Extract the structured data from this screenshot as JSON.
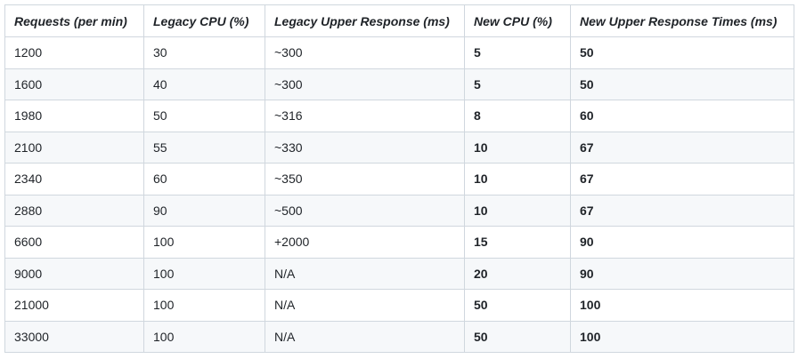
{
  "table": {
    "headers": [
      "Requests (per min)",
      "Legacy CPU (%)",
      "Legacy Upper Response (ms)",
      "New CPU (%)",
      "New Upper Response Times (ms)"
    ],
    "rows": [
      [
        "1200",
        "30",
        "~300",
        "5",
        "50"
      ],
      [
        "1600",
        "40",
        "~300",
        "5",
        "50"
      ],
      [
        "1980",
        "50",
        "~316",
        "8",
        "60"
      ],
      [
        "2100",
        "55",
        "~330",
        "10",
        "67"
      ],
      [
        "2340",
        "60",
        "~350",
        "10",
        "67"
      ],
      [
        "2880",
        "90",
        "~500",
        "10",
        "67"
      ],
      [
        "6600",
        "100",
        "+2000",
        "15",
        "90"
      ],
      [
        "9000",
        "100",
        "N/A",
        "20",
        "90"
      ],
      [
        "21000",
        "100",
        "N/A",
        "50",
        "100"
      ],
      [
        "33000",
        "100",
        "N/A",
        "50",
        "100"
      ]
    ]
  }
}
